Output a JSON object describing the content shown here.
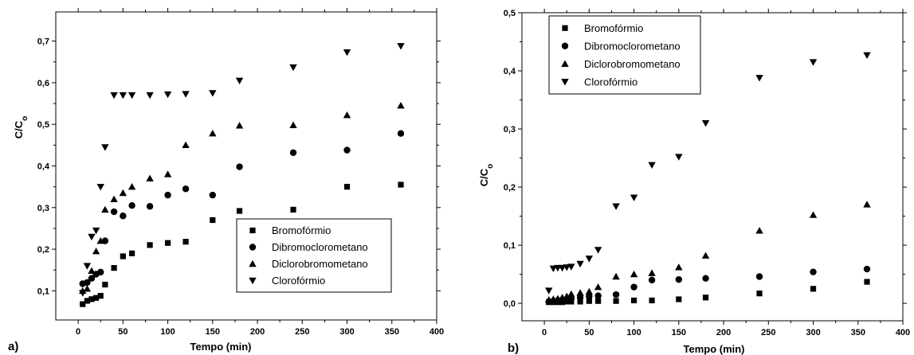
{
  "chart_data": [
    {
      "type": "scatter",
      "panel_label": "a)",
      "xlabel": "Tempo (min)",
      "ylabel": "C/C",
      "ylabel_sub": "o",
      "xlim": [
        -25,
        400
      ],
      "ylim": [
        0.03,
        0.77
      ],
      "x_ticks": [
        0,
        50,
        100,
        150,
        200,
        250,
        300,
        350,
        400
      ],
      "y_ticks": [
        0.1,
        0.2,
        0.3,
        0.4,
        0.5,
        0.6,
        0.7
      ],
      "x_tick_labels": [
        "0",
        "50",
        "100",
        "150",
        "200",
        "250",
        "300",
        "350",
        "400"
      ],
      "y_tick_labels": [
        "0,1",
        "0,2",
        "0,3",
        "0,4",
        "0,5",
        "0,6",
        "0,7"
      ],
      "grid": false,
      "legend_position": "bottom-right",
      "series": [
        {
          "name": "Bromofórmio",
          "marker": "square",
          "x": [
            5,
            10,
            15,
            20,
            25,
            30,
            40,
            50,
            60,
            80,
            100,
            120,
            150,
            180,
            240,
            300,
            360
          ],
          "y": [
            0.068,
            0.076,
            0.08,
            0.083,
            0.088,
            0.115,
            0.155,
            0.183,
            0.19,
            0.21,
            0.215,
            0.218,
            0.27,
            0.292,
            0.295,
            0.35,
            0.355
          ]
        },
        {
          "name": "Dibromoclorometano",
          "marker": "circle",
          "x": [
            5,
            10,
            15,
            20,
            25,
            30,
            40,
            50,
            60,
            80,
            100,
            120,
            150,
            180,
            240,
            300,
            360
          ],
          "y": [
            0.117,
            0.12,
            0.13,
            0.14,
            0.145,
            0.22,
            0.29,
            0.28,
            0.305,
            0.303,
            0.33,
            0.345,
            0.33,
            0.398,
            0.432,
            0.438,
            0.478
          ]
        },
        {
          "name": "Diclorobromometano",
          "marker": "triangle-up",
          "x": [
            5,
            10,
            15,
            20,
            25,
            30,
            40,
            50,
            60,
            80,
            100,
            120,
            150,
            180,
            240,
            300,
            360
          ],
          "y": [
            0.1,
            0.105,
            0.148,
            0.195,
            0.22,
            0.295,
            0.32,
            0.335,
            0.35,
            0.37,
            0.38,
            0.45,
            0.478,
            0.497,
            0.498,
            0.522,
            0.545
          ]
        },
        {
          "name": "Clorofórmio",
          "marker": "triangle-down",
          "x": [
            5,
            10,
            15,
            20,
            25,
            30,
            40,
            50,
            60,
            80,
            100,
            120,
            150,
            180,
            240,
            300,
            360
          ],
          "y": [
            0.095,
            0.16,
            0.23,
            0.245,
            0.35,
            0.445,
            0.57,
            0.57,
            0.57,
            0.57,
            0.572,
            0.573,
            0.575,
            0.605,
            0.637,
            0.673,
            0.688
          ]
        }
      ]
    },
    {
      "type": "scatter",
      "panel_label": "b)",
      "xlabel": "Tempo (min)",
      "ylabel": "C/C",
      "ylabel_sub": "o",
      "xlim": [
        -25,
        400
      ],
      "ylim": [
        -0.03,
        0.5
      ],
      "x_ticks": [
        0,
        50,
        100,
        150,
        200,
        250,
        300,
        350,
        400
      ],
      "y_ticks": [
        0.0,
        0.1,
        0.2,
        0.3,
        0.4,
        0.5
      ],
      "x_tick_labels": [
        "0",
        "50",
        "100",
        "150",
        "200",
        "250",
        "300",
        "350",
        "400"
      ],
      "y_tick_labels": [
        "0,0",
        "0,1",
        "0,2",
        "0,3",
        "0,4",
        "0,5"
      ],
      "grid": false,
      "legend_position": "top-left",
      "series": [
        {
          "name": "Bromofórmio",
          "marker": "square",
          "x": [
            5,
            10,
            15,
            20,
            25,
            30,
            40,
            50,
            60,
            80,
            100,
            120,
            150,
            180,
            240,
            300,
            360
          ],
          "y": [
            0.002,
            0.002,
            0.002,
            0.002,
            0.003,
            0.003,
            0.003,
            0.004,
            0.004,
            0.004,
            0.005,
            0.005,
            0.007,
            0.01,
            0.017,
            0.025,
            0.037
          ]
        },
        {
          "name": "Dibromoclorometano",
          "marker": "circle",
          "x": [
            5,
            10,
            15,
            20,
            25,
            30,
            40,
            50,
            60,
            80,
            100,
            120,
            150,
            180,
            240,
            300,
            360
          ],
          "y": [
            0.003,
            0.004,
            0.005,
            0.006,
            0.007,
            0.008,
            0.01,
            0.012,
            0.013,
            0.015,
            0.028,
            0.04,
            0.041,
            0.043,
            0.046,
            0.054,
            0.059
          ]
        },
        {
          "name": "Diclorobromometano",
          "marker": "triangle-up",
          "x": [
            5,
            10,
            15,
            20,
            25,
            30,
            40,
            50,
            60,
            80,
            100,
            120,
            150,
            180,
            240,
            300,
            360
          ],
          "y": [
            0.006,
            0.007,
            0.008,
            0.01,
            0.012,
            0.016,
            0.018,
            0.02,
            0.028,
            0.046,
            0.05,
            0.052,
            0.062,
            0.082,
            0.125,
            0.152,
            0.17
          ]
        },
        {
          "name": "Clorofórmio",
          "marker": "triangle-down",
          "x": [
            5,
            10,
            15,
            20,
            25,
            30,
            40,
            50,
            60,
            80,
            100,
            120,
            150,
            180,
            240,
            300,
            360
          ],
          "y": [
            0.022,
            0.06,
            0.061,
            0.061,
            0.062,
            0.063,
            0.068,
            0.077,
            0.092,
            0.167,
            0.182,
            0.238,
            0.252,
            0.31,
            0.388,
            0.415,
            0.427
          ]
        }
      ]
    }
  ]
}
